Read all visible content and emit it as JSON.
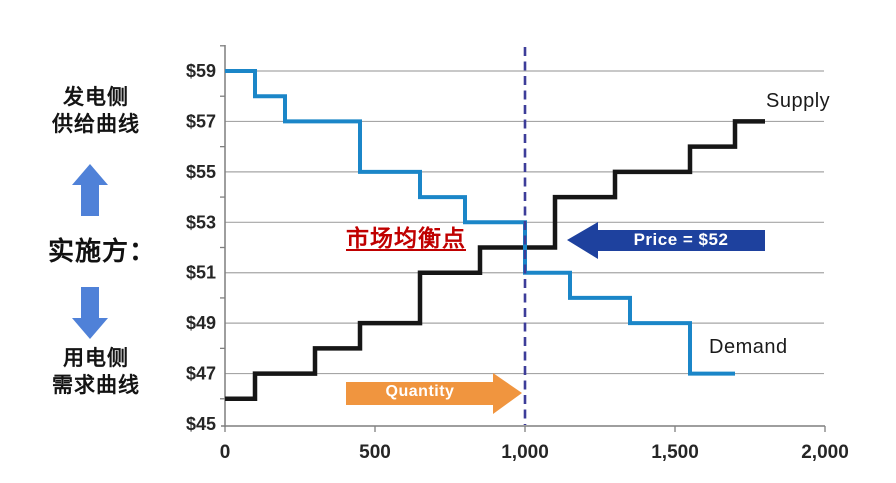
{
  "left_panel": {
    "supply_side_line1": "发电侧",
    "supply_side_line2": "供给曲线",
    "implementer": "实施方：",
    "demand_side_line1": "用电侧",
    "demand_side_line2": "需求曲线"
  },
  "annotations": {
    "equilibrium_label": "市场均衡点",
    "price_arrow_label": "Price = $52",
    "quantity_arrow_label": "Quantity",
    "supply_label": "Supply",
    "demand_label": "Demand"
  },
  "colors": {
    "demand_line": "#1b86c8",
    "supply_line": "#161616",
    "dashed_line": "#3d3d99",
    "price_arrow": "#1e419e",
    "quantity_arrow": "#f0953f",
    "equilibrium_text": "#c00000",
    "side_arrow": "#4f81d8",
    "gridline": "#a6a6a6",
    "axis": "#7f7f7f",
    "tick_label": "#262626"
  },
  "chart_data": {
    "type": "line",
    "subtype": "step",
    "title": "",
    "xlabel": "",
    "ylabel": "",
    "xlim": [
      0,
      2000
    ],
    "ylim": [
      45,
      60
    ],
    "grid": "horizontal",
    "x_ticks": [
      0,
      500,
      1000,
      1500,
      2000
    ],
    "x_tick_labels": [
      "0",
      "500",
      "1,000",
      "1,500",
      "2,000"
    ],
    "y_ticks": [
      45,
      47,
      49,
      51,
      53,
      55,
      57,
      59
    ],
    "y_tick_labels": [
      "$45",
      "$47",
      "$49",
      "$51",
      "$53",
      "$55",
      "$57",
      "$59"
    ],
    "y_minor_ticks": [
      46,
      48,
      50,
      52,
      54,
      56,
      58,
      60
    ],
    "equilibrium": {
      "quantity": 1000,
      "price": 52
    },
    "series": [
      {
        "name": "Supply",
        "points": [
          [
            0,
            46
          ],
          [
            100,
            46
          ],
          [
            100,
            47
          ],
          [
            300,
            47
          ],
          [
            300,
            48
          ],
          [
            450,
            48
          ],
          [
            450,
            49
          ],
          [
            650,
            49
          ],
          [
            650,
            51
          ],
          [
            850,
            51
          ],
          [
            850,
            52
          ],
          [
            1100,
            52
          ],
          [
            1100,
            54
          ],
          [
            1300,
            54
          ],
          [
            1300,
            55
          ],
          [
            1550,
            55
          ],
          [
            1550,
            56
          ],
          [
            1700,
            56
          ],
          [
            1700,
            57
          ],
          [
            1800,
            57
          ]
        ]
      },
      {
        "name": "Demand",
        "points": [
          [
            0,
            59
          ],
          [
            100,
            59
          ],
          [
            100,
            58
          ],
          [
            200,
            58
          ],
          [
            200,
            57
          ],
          [
            450,
            57
          ],
          [
            450,
            55
          ],
          [
            650,
            55
          ],
          [
            650,
            54
          ],
          [
            800,
            54
          ],
          [
            800,
            53
          ],
          [
            1000,
            53
          ],
          [
            1000,
            51
          ],
          [
            1150,
            51
          ],
          [
            1150,
            50
          ],
          [
            1350,
            50
          ],
          [
            1350,
            49
          ],
          [
            1550,
            49
          ],
          [
            1550,
            47
          ],
          [
            1700,
            47
          ]
        ]
      }
    ]
  }
}
